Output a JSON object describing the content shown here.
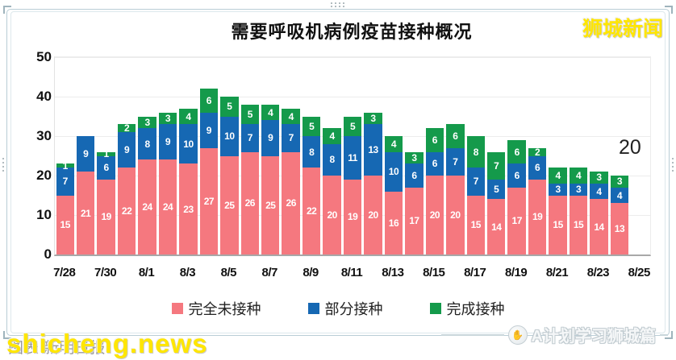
{
  "header": {
    "watermark_top_right": "狮城新闻"
  },
  "chart_data": {
    "type": "bar",
    "stacked": true,
    "title": "需要呼吸机病例疫苗接种概况",
    "xlabel": "",
    "ylabel": "",
    "ylim": [
      0,
      50
    ],
    "yticks": [
      "0",
      "10",
      "20",
      "30",
      "40",
      "50"
    ],
    "grid": true,
    "legend_position": "bottom",
    "categories": [
      "7/28",
      "7/29",
      "7/30",
      "7/31",
      "8/1",
      "8/2",
      "8/3",
      "8/4",
      "8/5",
      "8/6",
      "8/7",
      "8/8",
      "8/9",
      "8/10",
      "8/11",
      "8/12",
      "8/13",
      "8/14",
      "8/15",
      "8/16",
      "8/17",
      "8/18",
      "8/19",
      "8/20",
      "8/21",
      "8/22",
      "8/23",
      "8/24"
    ],
    "x_tick_labels": [
      "7/28",
      "7/30",
      "8/1",
      "8/3",
      "8/5",
      "8/7",
      "8/9",
      "8/11",
      "8/13",
      "8/15",
      "8/17",
      "8/19",
      "8/21",
      "8/23",
      "8/25"
    ],
    "series": [
      {
        "name": "完全未接种",
        "color": "#f5787f",
        "values": [
          15,
          21,
          19,
          22,
          24,
          24,
          23,
          27,
          25,
          26,
          25,
          26,
          22,
          20,
          19,
          20,
          16,
          17,
          20,
          20,
          15,
          14,
          17,
          19,
          15,
          15,
          14,
          13
        ]
      },
      {
        "name": "部分接种",
        "color": "#1668b3",
        "values": [
          7,
          9,
          6,
          9,
          8,
          9,
          10,
          9,
          10,
          7,
          9,
          7,
          8,
          8,
          11,
          13,
          10,
          6,
          6,
          7,
          7,
          5,
          6,
          6,
          3,
          3,
          4,
          4
        ]
      },
      {
        "name": "完成接种",
        "color": "#149a4b",
        "values": [
          1,
          0,
          1,
          2,
          3,
          3,
          4,
          6,
          5,
          5,
          4,
          4,
          5,
          4,
          5,
          3,
          4,
          3,
          6,
          6,
          8,
          7,
          6,
          2,
          4,
          4,
          3,
          3
        ]
      }
    ],
    "annotation": "20"
  },
  "footer": {
    "caption": "图表·新明日报",
    "watermark_left": "shicheng.news",
    "watermark_right": "A计划学习狮城篇",
    "hand_icon_glyph": "✋"
  }
}
